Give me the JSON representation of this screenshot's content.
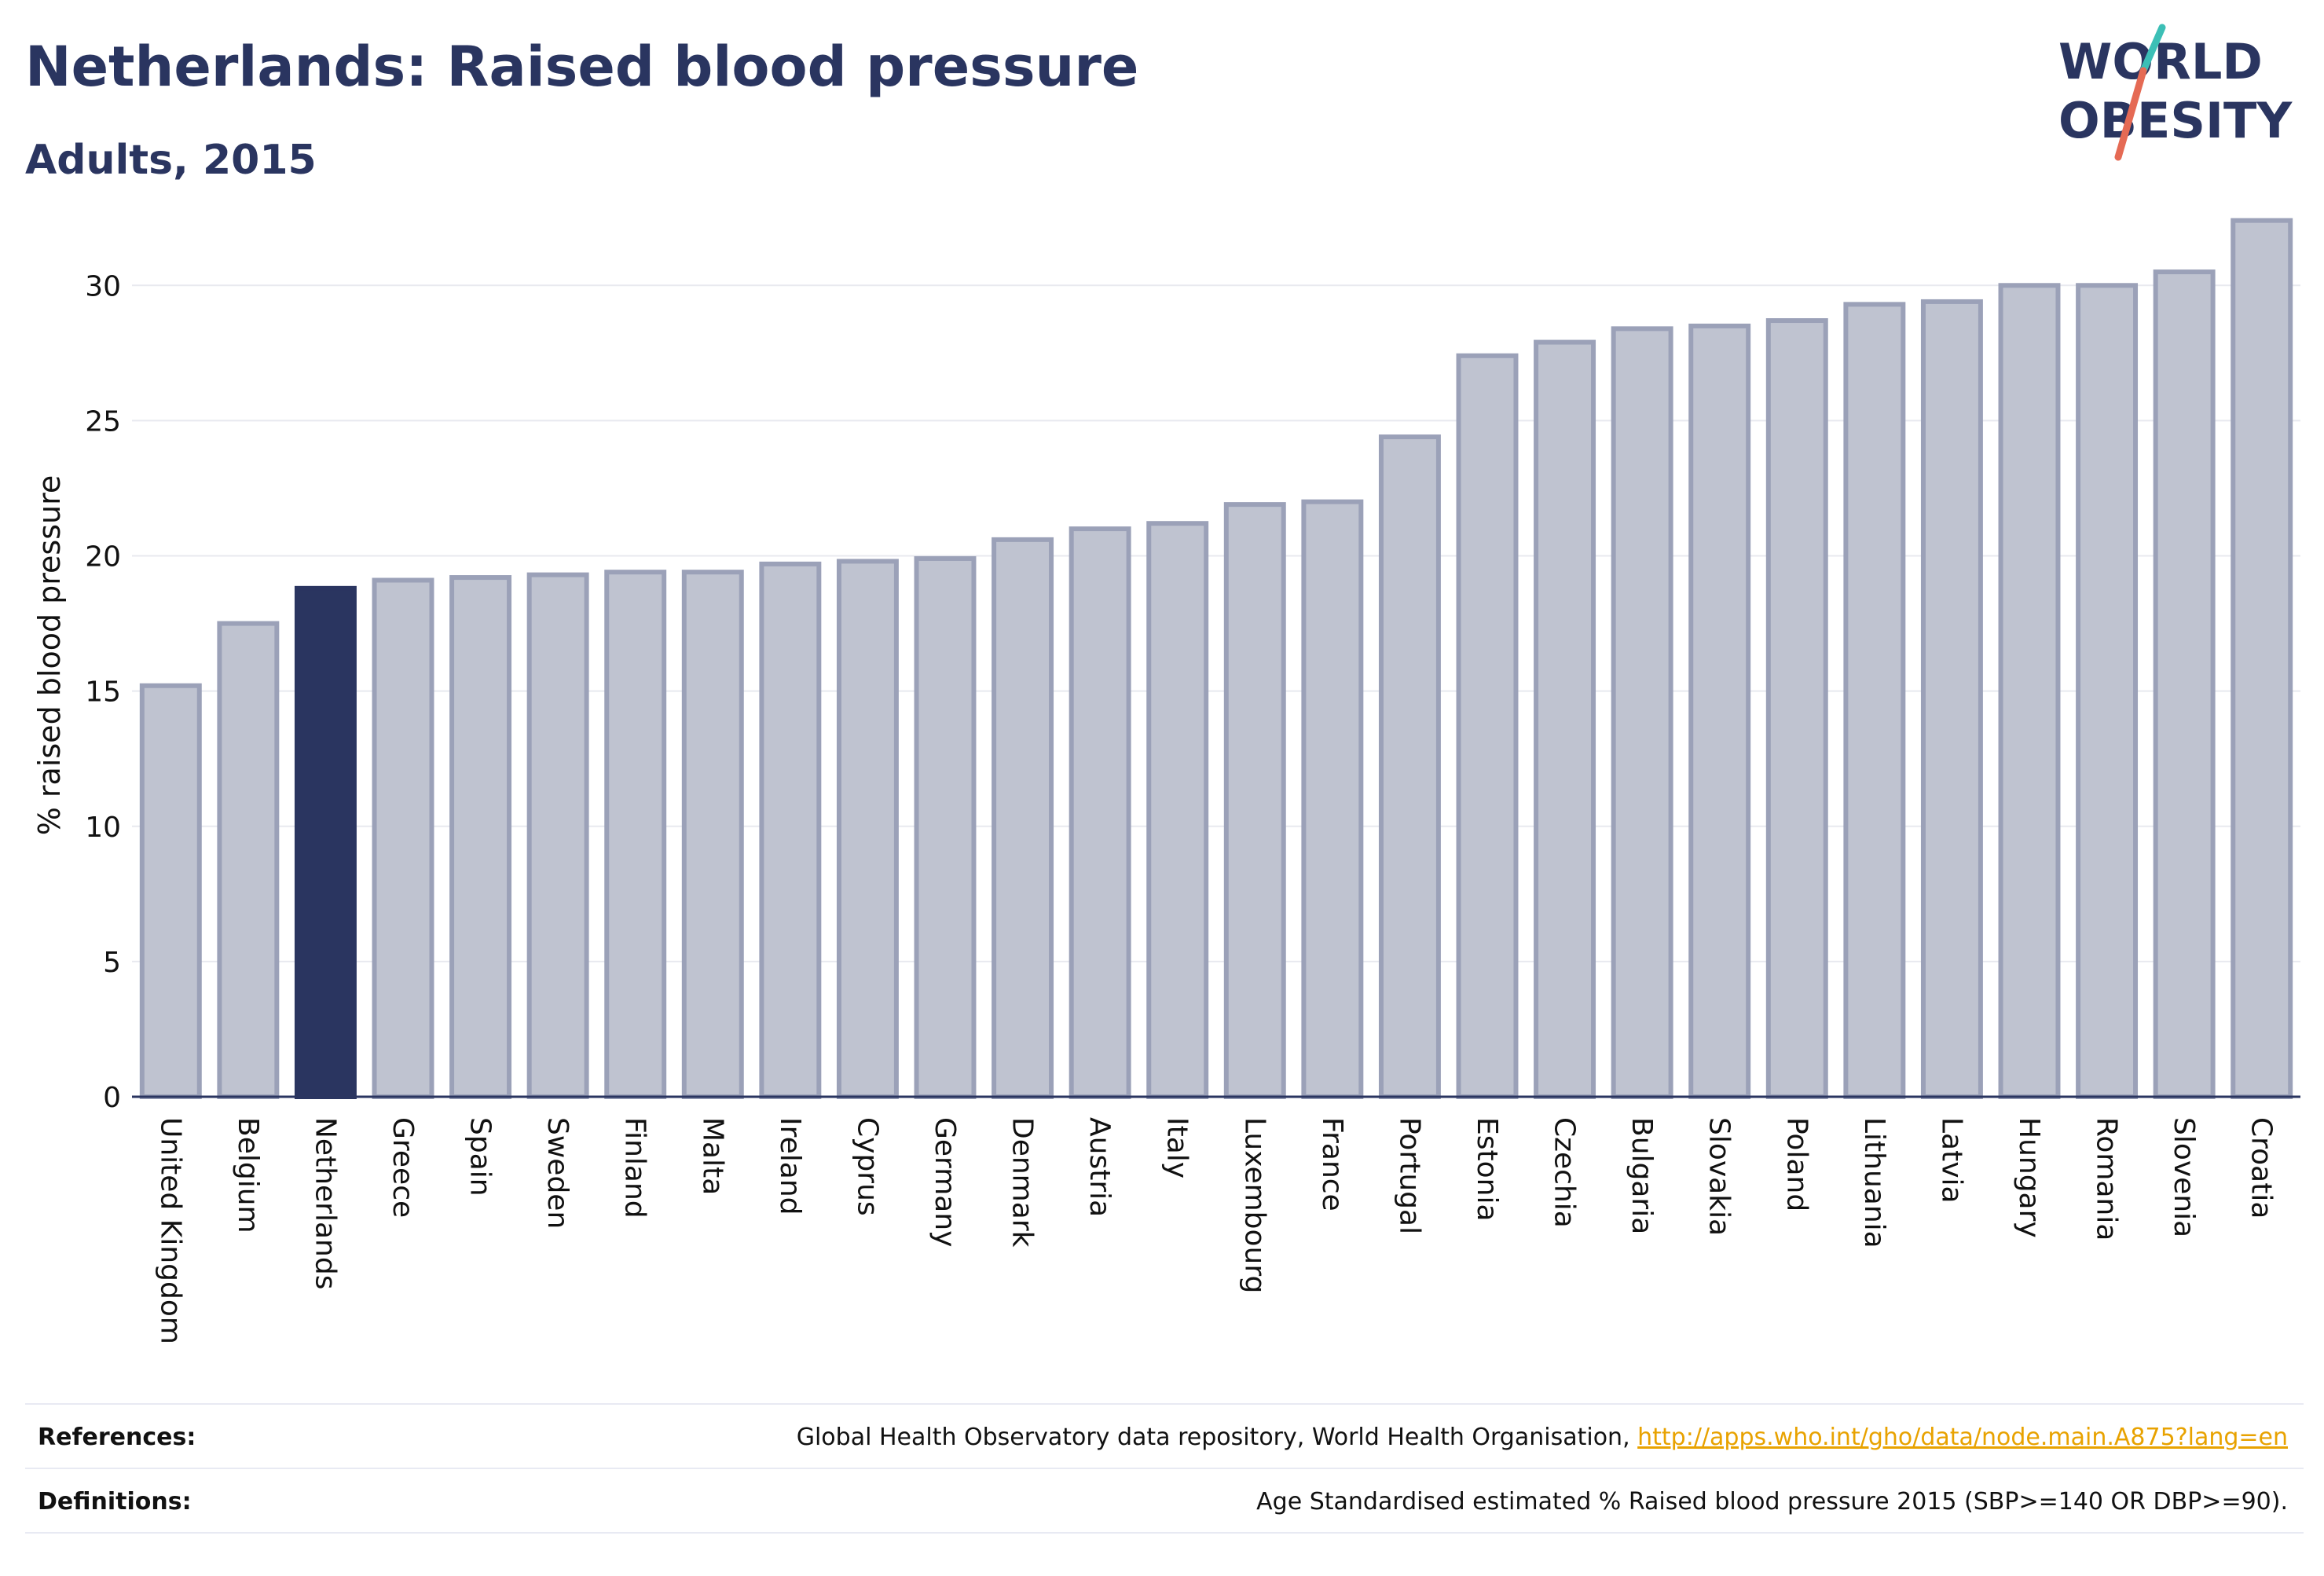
{
  "header": {
    "title": "Netherlands: Raised blood pressure",
    "subtitle": "Adults, 2015"
  },
  "logo": {
    "line1": "WORLD",
    "line2": "OBESITY",
    "icon": "slash-mark-icon"
  },
  "colors": {
    "highlight_bar": "#2a3560",
    "other_bar_fill": "#bfc3d0",
    "other_bar_stroke": "#9ba1b8",
    "axis_text": "#111111",
    "grid": "#e8e9ef"
  },
  "chart_data": {
    "type": "bar",
    "title": "Netherlands: Raised blood pressure",
    "subtitle": "Adults, 2015",
    "xlabel": "",
    "ylabel": "% raised blood pressure",
    "ylim": [
      0,
      33
    ],
    "yticks": [
      0,
      5,
      10,
      15,
      20,
      25,
      30
    ],
    "grid": true,
    "highlight": "Netherlands",
    "categories": [
      "United Kingdom",
      "Belgium",
      "Netherlands",
      "Greece",
      "Spain",
      "Sweden",
      "Finland",
      "Malta",
      "Ireland",
      "Cyprus",
      "Germany",
      "Denmark",
      "Austria",
      "Italy",
      "Luxembourg",
      "France",
      "Portugal",
      "Estonia",
      "Czechia",
      "Bulgaria",
      "Slovakia",
      "Poland",
      "Lithuania",
      "Latvia",
      "Hungary",
      "Romania",
      "Slovenia",
      "Croatia"
    ],
    "values": [
      15.2,
      17.5,
      18.8,
      19.1,
      19.2,
      19.3,
      19.4,
      19.4,
      19.7,
      19.8,
      19.9,
      20.6,
      21.0,
      21.2,
      21.9,
      22.0,
      24.4,
      27.4,
      27.9,
      28.4,
      28.5,
      28.7,
      29.3,
      29.4,
      30.0,
      30.0,
      30.5,
      32.4
    ]
  },
  "footer": {
    "references_label": "References:",
    "references_text": "Global Health Observatory data repository, World Health Organisation, ",
    "references_link": "http://apps.who.int/gho/data/node.main.A875?lang=en",
    "definitions_label": "Definitions:",
    "definitions_text": "Age Standardised estimated % Raised blood pressure 2015 (SBP>=140 OR DBP>=90)."
  }
}
